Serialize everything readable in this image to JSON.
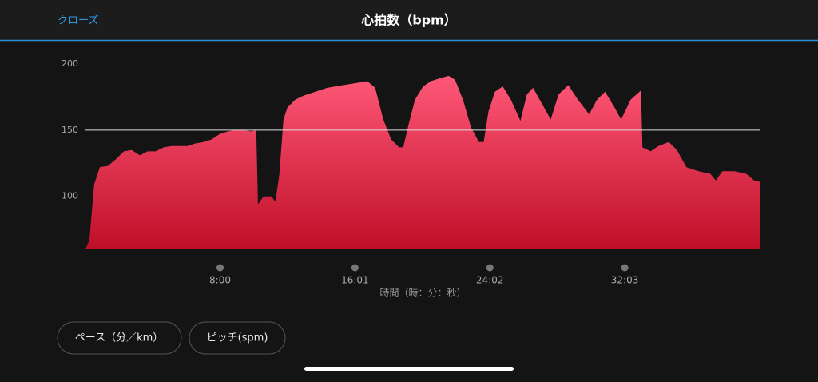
{
  "header": {
    "close": "クローズ",
    "title": "心拍数（bpm）"
  },
  "chart_data": {
    "type": "area",
    "x": [
      0,
      14,
      31,
      51,
      80,
      108,
      137,
      165,
      194,
      222,
      250,
      279,
      307,
      336,
      364,
      393,
      421,
      450,
      478,
      507,
      535,
      563,
      592,
      609,
      615,
      635,
      663,
      677,
      691,
      706,
      720,
      748,
      777,
      805,
      834,
      862,
      891,
      919,
      948,
      976,
      1005,
      1033,
      1062,
      1090,
      1118,
      1133,
      1153,
      1175,
      1204,
      1232,
      1261,
      1295,
      1318,
      1346,
      1375,
      1403,
      1420,
      1437,
      1460,
      1488,
      1517,
      1551,
      1574,
      1596,
      1625,
      1659,
      1687,
      1722,
      1756,
      1796,
      1824,
      1853,
      1887,
      1910,
      1944,
      1981,
      1986,
      2015,
      2043,
      2080,
      2109,
      2143,
      2186,
      2228,
      2248,
      2271,
      2314,
      2356,
      2385,
      2405
    ],
    "values": [
      60,
      67,
      109,
      122,
      123,
      128,
      134,
      135,
      131,
      134,
      134,
      137,
      138,
      138,
      138,
      140,
      141,
      143,
      147,
      149,
      150,
      150,
      149,
      150,
      94,
      100,
      100,
      96,
      116,
      158,
      167,
      173,
      176,
      178,
      180,
      182,
      183,
      184,
      185,
      186,
      187,
      182,
      158,
      143,
      137,
      137,
      155,
      173,
      183,
      187,
      189,
      191,
      188,
      173,
      152,
      141,
      141,
      164,
      179,
      183,
      173,
      157,
      177,
      182,
      171,
      158,
      177,
      184,
      173,
      162,
      173,
      179,
      167,
      158,
      173,
      180,
      137,
      134,
      138,
      141,
      135,
      122,
      119,
      117,
      112,
      119,
      119,
      117,
      112,
      111
    ],
    "xlim": [
      0,
      2407
    ],
    "ylim": [
      60,
      200
    ],
    "yticks": [
      100,
      150,
      200
    ],
    "xticks": [
      {
        "value": 480,
        "label": "8:00"
      },
      {
        "value": 961,
        "label": "16:01"
      },
      {
        "value": 1442,
        "label": "24:02"
      },
      {
        "value": 1923,
        "label": "32:03"
      }
    ],
    "xlabel": "時間（時：分：秒）",
    "reference_line": 150,
    "colors": [
      "#ff5878",
      "#bf0f28"
    ]
  },
  "buttons": [
    "ペース（分／km）",
    "ピッチ(spm)"
  ]
}
